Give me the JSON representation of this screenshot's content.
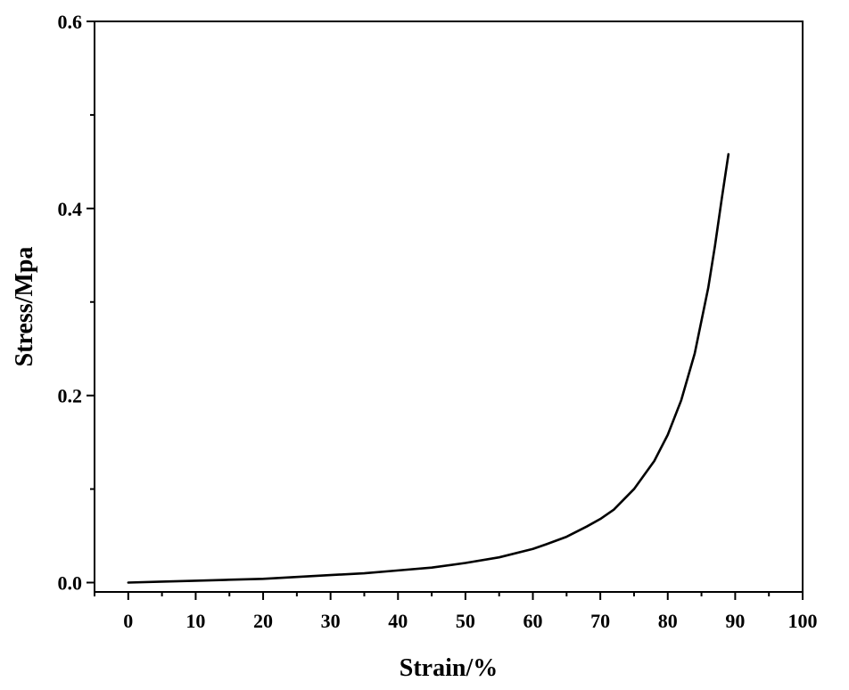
{
  "chart_data": {
    "type": "line",
    "xlabel": "Strain/%",
    "ylabel": "Stress/Mpa",
    "xlim": [
      -5,
      100
    ],
    "ylim": [
      -0.01,
      0.6
    ],
    "xticks": [
      0,
      10,
      20,
      30,
      40,
      50,
      60,
      70,
      80,
      90,
      100
    ],
    "xtick_labels": [
      "0",
      "10",
      "20",
      "30",
      "40",
      "50",
      "60",
      "70",
      "80",
      "90",
      "100"
    ],
    "yticks": [
      0.0,
      0.2,
      0.4,
      0.6
    ],
    "ytick_labels": [
      "0.0",
      "0.2",
      "0.4",
      "0.6"
    ],
    "grid": false,
    "legend": "none",
    "colors": {
      "line": "#000000",
      "axes": "#000000"
    },
    "series": [
      {
        "x": [
          0,
          5,
          10,
          15,
          20,
          25,
          30,
          35,
          40,
          45,
          50,
          55,
          60,
          62,
          65,
          68,
          70,
          72,
          75,
          78,
          80,
          82,
          84,
          86,
          87,
          88,
          89
        ],
        "y": [
          0.0,
          0.001,
          0.002,
          0.003,
          0.004,
          0.006,
          0.008,
          0.01,
          0.013,
          0.016,
          0.021,
          0.027,
          0.036,
          0.041,
          0.049,
          0.06,
          0.068,
          0.078,
          0.1,
          0.13,
          0.158,
          0.195,
          0.245,
          0.315,
          0.36,
          0.41,
          0.458
        ]
      }
    ]
  }
}
